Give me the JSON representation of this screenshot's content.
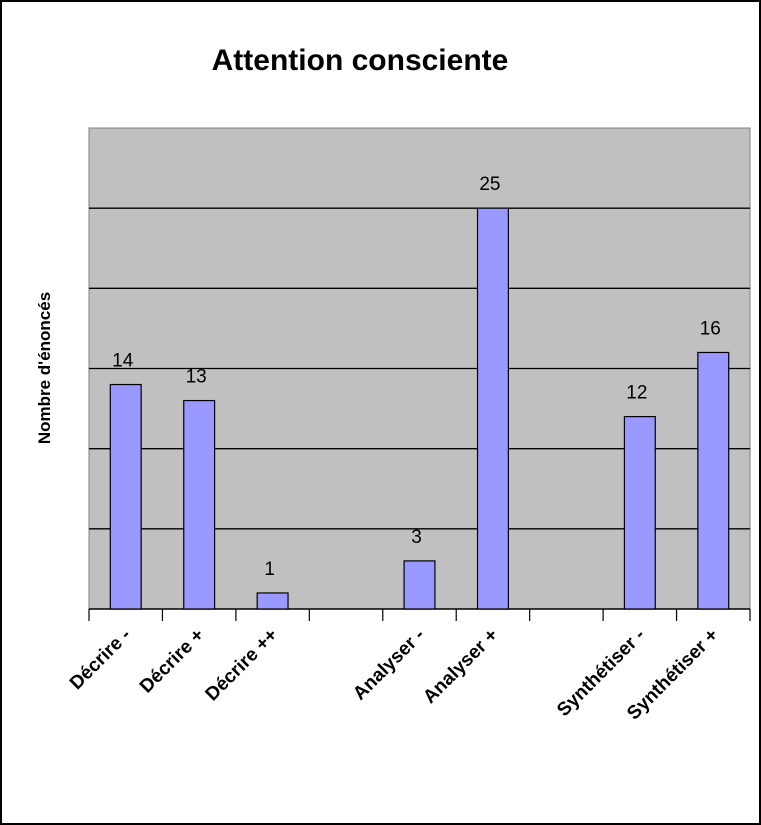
{
  "chart_data": {
    "type": "bar",
    "title": "Attention consciente",
    "ylabel": "Nombre d'énoncés",
    "xlabel": "",
    "categories": [
      "Décrire -",
      "Décrire +",
      "Décrire ++",
      "",
      "Analyser -",
      "Analyser +",
      "",
      "Synthétiser -",
      "Synthétiser +"
    ],
    "values": [
      14,
      13,
      1,
      null,
      3,
      25,
      null,
      12,
      16
    ],
    "ylim": [
      0,
      30
    ],
    "ytick_step": 5,
    "grid": true,
    "legend": "none",
    "colors": {
      "plot_background": "#c0c0c0",
      "bar_fill": "#9999ff",
      "bar_stroke": "#000000",
      "gridline": "#000000"
    }
  }
}
